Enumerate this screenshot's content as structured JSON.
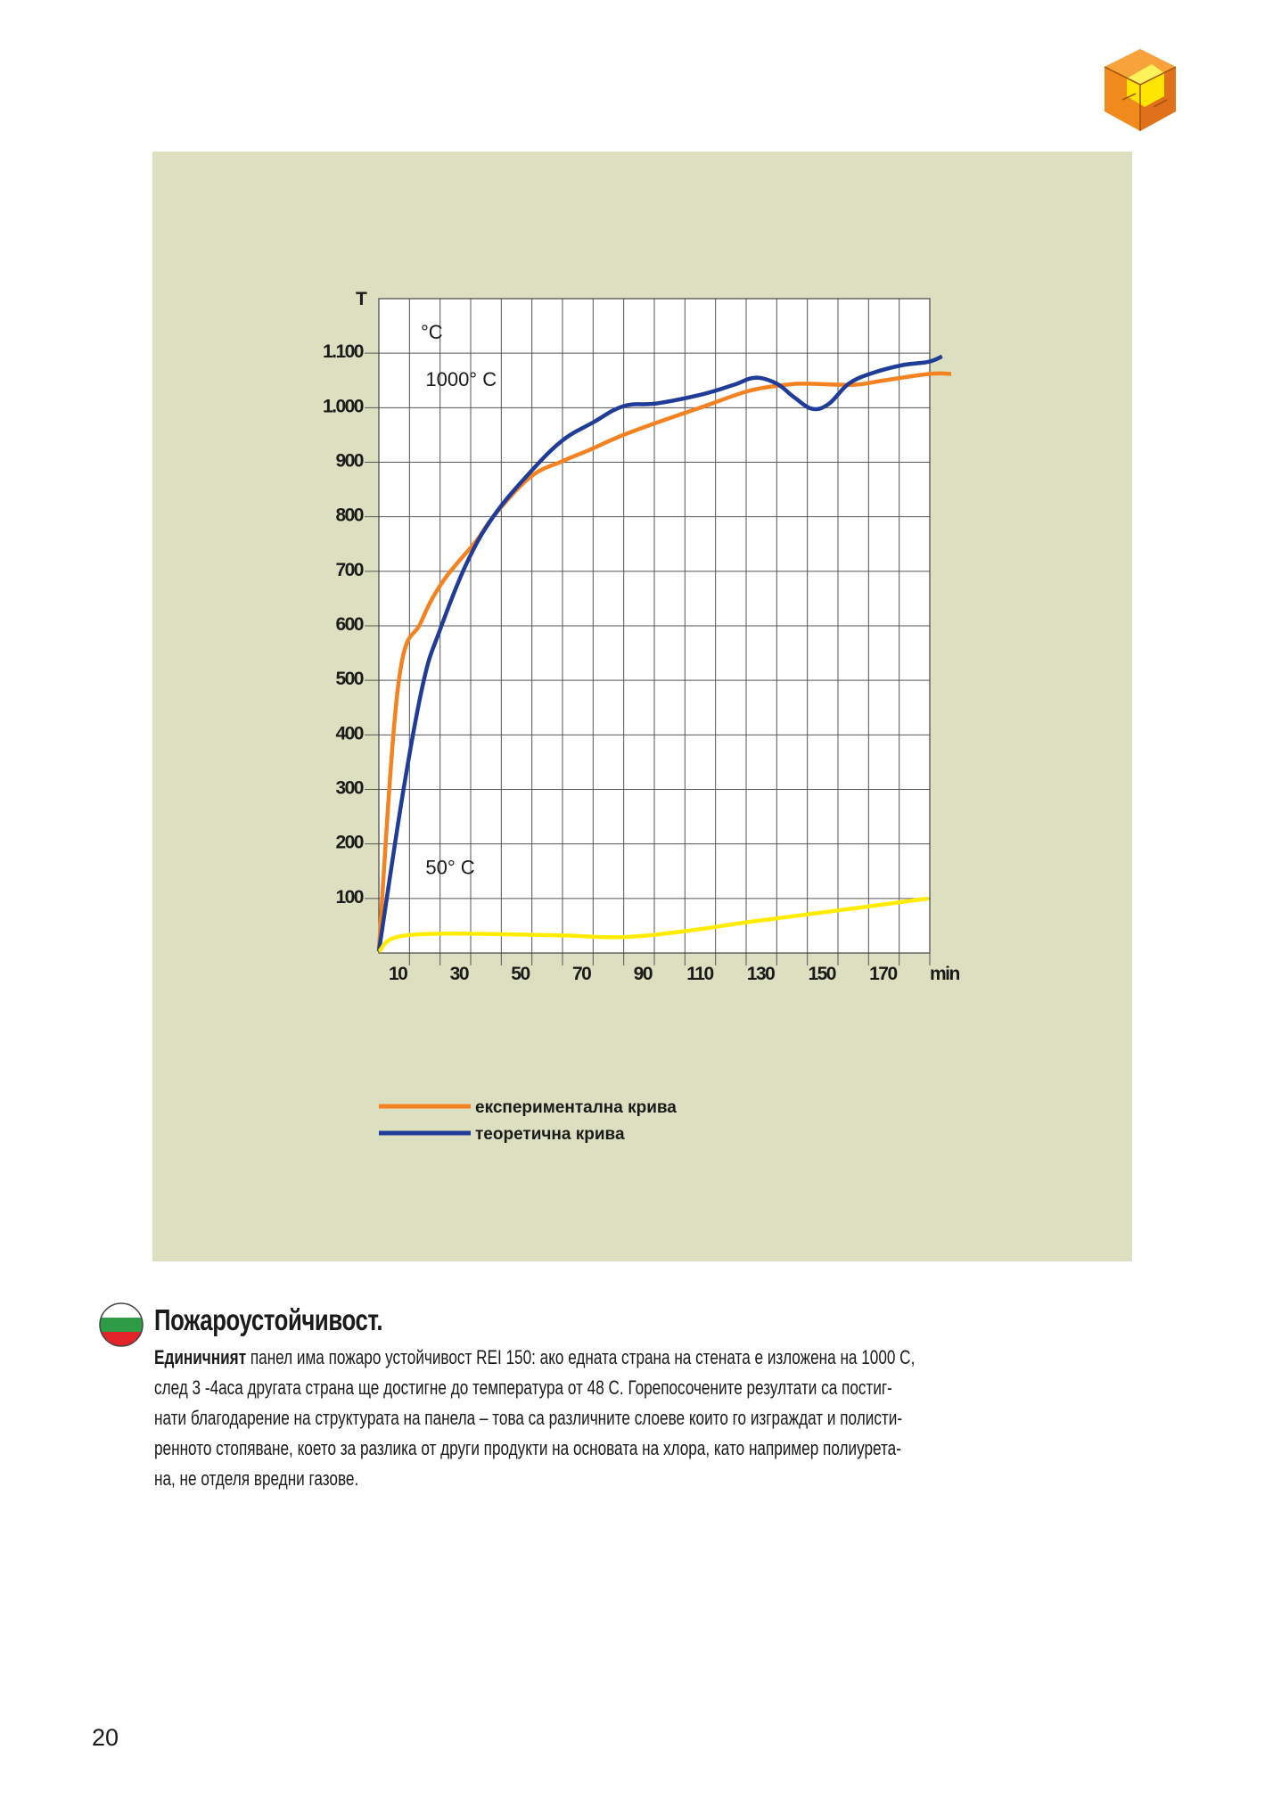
{
  "page": {
    "number": "20",
    "heading": "Пожароустойчивост.",
    "body_lead": "Единичният",
    "body_lines": [
      " панел има пожаро устойчивост REI 150: ако едната страна на стената е изложена на 1000 С,",
      "след 3 -4аса другата страна ще достигне до температура от 48 С. Горепосочените резултати са постиг-",
      "нати благодарение на структурата на панела – това са различните слоеве които го изграждат и полисти-",
      "ренното стопяване, което за разлика от други продукти на основата на хлора, като например полиурета-",
      "на, не отделя вредни газове."
    ],
    "flag_colors": [
      "#ffffff",
      "#2e9b46",
      "#e3232a"
    ],
    "logo": "orange-yellow-puzzle-cube-logo",
    "panel_color": "#dde0c0"
  },
  "chart_data": {
    "type": "line",
    "ylabel": "T",
    "y_unit_label": "°C",
    "xlabel": "min",
    "xlim": [
      0,
      180
    ],
    "ylim": [
      0,
      1200
    ],
    "grid": true,
    "x_ticks": [
      10,
      30,
      50,
      70,
      90,
      110,
      130,
      150,
      170
    ],
    "x_tick_labels": [
      "10",
      "30",
      "50",
      "70",
      "90",
      "110",
      "130",
      "150",
      "170"
    ],
    "y_ticks": [
      100,
      200,
      300,
      400,
      500,
      600,
      700,
      800,
      900,
      1000,
      1100
    ],
    "y_tick_labels": [
      "100",
      "200",
      "300",
      "400",
      "500",
      "600",
      "700",
      "800",
      "900",
      "1.000",
      "1.100"
    ],
    "annotations": [
      {
        "text": "°C",
        "x": 20,
        "y": 1140
      },
      {
        "text": "1000° C",
        "x": 17,
        "y": 1040
      },
      {
        "text": "50° C",
        "x": 17,
        "y": 145
      }
    ],
    "legend": "bottom-left",
    "series": [
      {
        "name": "експериментална крива",
        "color": "#f58220",
        "x": [
          0,
          6.4,
          13.8,
          21,
          32,
          37.6,
          49.5,
          60,
          69,
          79,
          91,
          106,
          121,
          133,
          140,
          155,
          165,
          180,
          187
        ],
        "y": [
          7,
          494,
          607,
          682,
          757,
          802,
          873,
          902,
          923,
          948,
          973,
          1002,
          1031,
          1042,
          1044,
          1042,
          1050,
          1062,
          1062
        ]
      },
      {
        "name": "теоретична крива",
        "color": "#1f3c99",
        "x": [
          0,
          8,
          14.6,
          19.8,
          28.7,
          37.6,
          49.5,
          60,
          70,
          80,
          91,
          106,
          116,
          123,
          130,
          135.7,
          141.6,
          147,
          153.5,
          161,
          171,
          179.5,
          184
        ],
        "y": [
          3,
          298,
          498,
          590,
          715,
          802,
          882,
          940,
          973,
          1003,
          1008,
          1025,
          1042,
          1055,
          1044,
          1019,
          998,
          1007,
          1044,
          1063,
          1078,
          1084,
          1094
        ]
      },
      {
        "color": "#ffec00",
        "x": [
          0,
          10,
          54,
          79,
          100,
          121,
          150,
          179.5
        ],
        "y": [
          3,
          33,
          33,
          29,
          40,
          57,
          78,
          100
        ]
      }
    ]
  }
}
